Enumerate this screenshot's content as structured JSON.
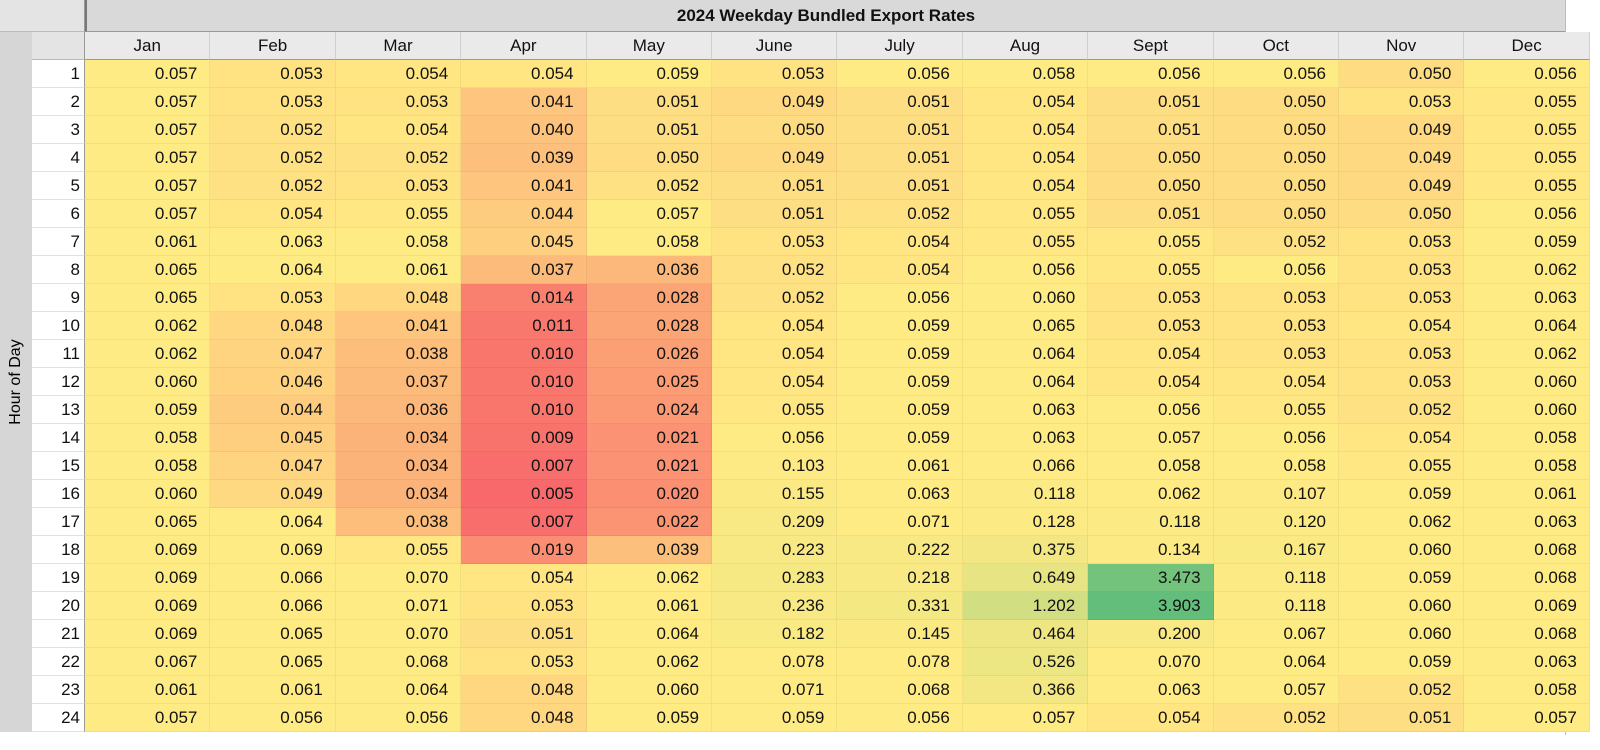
{
  "header": {
    "title": "2024 Weekday Bundled Export Rates"
  },
  "table": {
    "row_label": "Hour of Day",
    "columns": [
      "Jan",
      "Feb",
      "Mar",
      "Apr",
      "May",
      "June",
      "July",
      "Aug",
      "Sept",
      "Oct",
      "Nov",
      "Dec"
    ],
    "rows": [
      {
        "hour": 1,
        "values": [
          "0.057",
          "0.053",
          "0.054",
          "0.054",
          "0.059",
          "0.053",
          "0.056",
          "0.058",
          "0.056",
          "0.056",
          "0.050",
          "0.056"
        ]
      },
      {
        "hour": 2,
        "values": [
          "0.057",
          "0.053",
          "0.053",
          "0.041",
          "0.051",
          "0.049",
          "0.051",
          "0.054",
          "0.051",
          "0.050",
          "0.053",
          "0.055"
        ]
      },
      {
        "hour": 3,
        "values": [
          "0.057",
          "0.052",
          "0.054",
          "0.040",
          "0.051",
          "0.050",
          "0.051",
          "0.054",
          "0.051",
          "0.050",
          "0.049",
          "0.055"
        ]
      },
      {
        "hour": 4,
        "values": [
          "0.057",
          "0.052",
          "0.052",
          "0.039",
          "0.050",
          "0.049",
          "0.051",
          "0.054",
          "0.050",
          "0.050",
          "0.049",
          "0.055"
        ]
      },
      {
        "hour": 5,
        "values": [
          "0.057",
          "0.052",
          "0.053",
          "0.041",
          "0.052",
          "0.051",
          "0.051",
          "0.054",
          "0.050",
          "0.050",
          "0.049",
          "0.055"
        ]
      },
      {
        "hour": 6,
        "values": [
          "0.057",
          "0.054",
          "0.055",
          "0.044",
          "0.057",
          "0.051",
          "0.052",
          "0.055",
          "0.051",
          "0.050",
          "0.050",
          "0.056"
        ]
      },
      {
        "hour": 7,
        "values": [
          "0.061",
          "0.063",
          "0.058",
          "0.045",
          "0.058",
          "0.053",
          "0.054",
          "0.055",
          "0.055",
          "0.052",
          "0.053",
          "0.059"
        ]
      },
      {
        "hour": 8,
        "values": [
          "0.065",
          "0.064",
          "0.061",
          "0.037",
          "0.036",
          "0.052",
          "0.054",
          "0.056",
          "0.055",
          "0.056",
          "0.053",
          "0.062"
        ]
      },
      {
        "hour": 9,
        "values": [
          "0.065",
          "0.053",
          "0.048",
          "0.014",
          "0.028",
          "0.052",
          "0.056",
          "0.060",
          "0.053",
          "0.053",
          "0.053",
          "0.063"
        ]
      },
      {
        "hour": 10,
        "values": [
          "0.062",
          "0.048",
          "0.041",
          "0.011",
          "0.028",
          "0.054",
          "0.059",
          "0.065",
          "0.053",
          "0.053",
          "0.054",
          "0.064"
        ]
      },
      {
        "hour": 11,
        "values": [
          "0.062",
          "0.047",
          "0.038",
          "0.010",
          "0.026",
          "0.054",
          "0.059",
          "0.064",
          "0.054",
          "0.053",
          "0.053",
          "0.062"
        ]
      },
      {
        "hour": 12,
        "values": [
          "0.060",
          "0.046",
          "0.037",
          "0.010",
          "0.025",
          "0.054",
          "0.059",
          "0.064",
          "0.054",
          "0.054",
          "0.053",
          "0.060"
        ]
      },
      {
        "hour": 13,
        "values": [
          "0.059",
          "0.044",
          "0.036",
          "0.010",
          "0.024",
          "0.055",
          "0.059",
          "0.063",
          "0.056",
          "0.055",
          "0.052",
          "0.060"
        ]
      },
      {
        "hour": 14,
        "values": [
          "0.058",
          "0.045",
          "0.034",
          "0.009",
          "0.021",
          "0.056",
          "0.059",
          "0.063",
          "0.057",
          "0.056",
          "0.054",
          "0.058"
        ]
      },
      {
        "hour": 15,
        "values": [
          "0.058",
          "0.047",
          "0.034",
          "0.007",
          "0.021",
          "0.103",
          "0.061",
          "0.066",
          "0.058",
          "0.058",
          "0.055",
          "0.058"
        ]
      },
      {
        "hour": 16,
        "values": [
          "0.060",
          "0.049",
          "0.034",
          "0.005",
          "0.020",
          "0.155",
          "0.063",
          "0.118",
          "0.062",
          "0.107",
          "0.059",
          "0.061"
        ]
      },
      {
        "hour": 17,
        "values": [
          "0.065",
          "0.064",
          "0.038",
          "0.007",
          "0.022",
          "0.209",
          "0.071",
          "0.128",
          "0.118",
          "0.120",
          "0.062",
          "0.063"
        ]
      },
      {
        "hour": 18,
        "values": [
          "0.069",
          "0.069",
          "0.055",
          "0.019",
          "0.039",
          "0.223",
          "0.222",
          "0.375",
          "0.134",
          "0.167",
          "0.060",
          "0.068"
        ]
      },
      {
        "hour": 19,
        "values": [
          "0.069",
          "0.066",
          "0.070",
          "0.054",
          "0.062",
          "0.283",
          "0.218",
          "0.649",
          "3.473",
          "0.118",
          "0.059",
          "0.068"
        ]
      },
      {
        "hour": 20,
        "values": [
          "0.069",
          "0.066",
          "0.071",
          "0.053",
          "0.061",
          "0.236",
          "0.331",
          "1.202",
          "3.903",
          "0.118",
          "0.060",
          "0.069"
        ]
      },
      {
        "hour": 21,
        "values": [
          "0.069",
          "0.065",
          "0.070",
          "0.051",
          "0.064",
          "0.182",
          "0.145",
          "0.464",
          "0.200",
          "0.067",
          "0.060",
          "0.068"
        ]
      },
      {
        "hour": 22,
        "values": [
          "0.067",
          "0.065",
          "0.068",
          "0.053",
          "0.062",
          "0.078",
          "0.078",
          "0.526",
          "0.070",
          "0.064",
          "0.059",
          "0.063"
        ]
      },
      {
        "hour": 23,
        "values": [
          "0.061",
          "0.061",
          "0.064",
          "0.048",
          "0.060",
          "0.071",
          "0.068",
          "0.366",
          "0.063",
          "0.057",
          "0.052",
          "0.058"
        ]
      },
      {
        "hour": 24,
        "values": [
          "0.057",
          "0.056",
          "0.056",
          "0.048",
          "0.059",
          "0.059",
          "0.056",
          "0.057",
          "0.054",
          "0.052",
          "0.051",
          "0.057"
        ]
      }
    ]
  }
}
